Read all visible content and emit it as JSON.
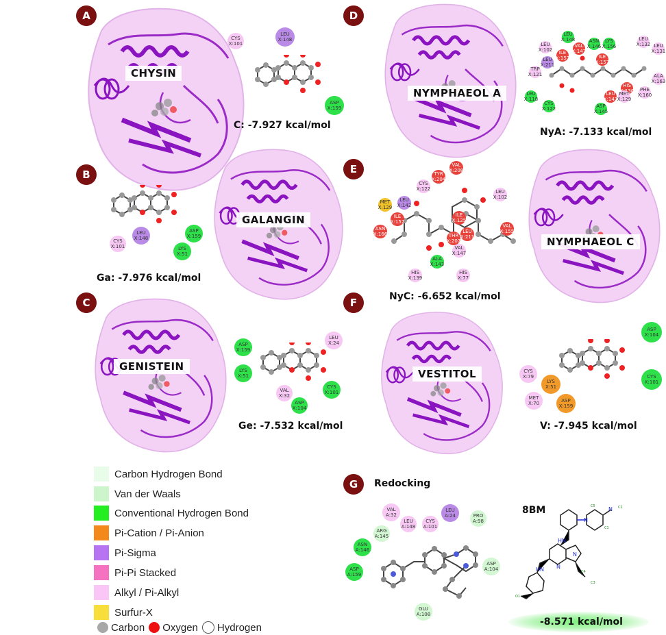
{
  "panels": {
    "A": {
      "badge": "A",
      "protein": "CHYSIN",
      "score": "C: -7.927 kcal/mol",
      "residues": [
        {
          "name": "CYS",
          "id": "X:101"
        },
        {
          "name": "LEU",
          "id": "X:148"
        },
        {
          "name": "ASP",
          "id": "X:159"
        }
      ]
    },
    "B": {
      "badge": "B",
      "protein": "GALANGIN",
      "score": "Ga: -7.976 kcal/mol",
      "residues": [
        {
          "name": "LEU",
          "id": "X:148"
        },
        {
          "name": "ASP",
          "id": "X:159"
        },
        {
          "name": "CYS",
          "id": "X:101"
        },
        {
          "name": "LYS",
          "id": "X:51"
        }
      ]
    },
    "C": {
      "badge": "C",
      "protein": "GENISTEIN",
      "score": "Ge: -7.532 kcal/mol",
      "residues": [
        {
          "name": "ASP",
          "id": "X:159"
        },
        {
          "name": "LEU",
          "id": "X:24"
        },
        {
          "name": "LYS",
          "id": "X:51"
        },
        {
          "name": "VAL",
          "id": "X:32"
        },
        {
          "name": "ASP",
          "id": "X:104"
        },
        {
          "name": "CYS",
          "id": "X:101"
        }
      ]
    },
    "D": {
      "badge": "D",
      "protein": "NYMPHAEOL A",
      "score": "NyA: -7.133 kcal/mol",
      "residues": [
        {
          "name": "LEU",
          "id": "X:148"
        },
        {
          "name": "ASN",
          "id": "X:146"
        },
        {
          "name": "LYS",
          "id": "X:156"
        },
        {
          "name": "LEU",
          "id": "X:132"
        },
        {
          "name": "LEU",
          "id": "X:131"
        },
        {
          "name": "LEU",
          "id": "X:102"
        },
        {
          "name": "ILE",
          "id": "X:157"
        },
        {
          "name": "VAL",
          "id": "X:147"
        },
        {
          "name": "ILE",
          "id": "X:157"
        },
        {
          "name": "LEU",
          "id": "X:211"
        },
        {
          "name": "TRP",
          "id": "X:121"
        },
        {
          "name": "ALA",
          "id": "X:163"
        },
        {
          "name": "HIS",
          "id": "X:130"
        },
        {
          "name": "PHE",
          "id": "X:160"
        },
        {
          "name": "LEU",
          "id": "X:118"
        },
        {
          "name": "LEU",
          "id": "X:143"
        },
        {
          "name": "MET",
          "id": "X:129"
        },
        {
          "name": "CYS",
          "id": "X:122"
        },
        {
          "name": "ASP",
          "id": "X:145"
        }
      ]
    },
    "E": {
      "badge": "E",
      "protein": "NYMPHAEOL C",
      "score": "NyC: -6.652 kcal/mol",
      "residues": [
        {
          "name": "VAL",
          "id": "X:208"
        },
        {
          "name": "TYR",
          "id": "X:204"
        },
        {
          "name": "CYS",
          "id": "X:122"
        },
        {
          "name": "LEU",
          "id": "X:102"
        },
        {
          "name": "MET",
          "id": "X:129"
        },
        {
          "name": "LEU",
          "id": "X:142"
        },
        {
          "name": "ILE",
          "id": "X:157"
        },
        {
          "name": "ILE",
          "id": "X:125"
        },
        {
          "name": "ASN",
          "id": "X:166"
        },
        {
          "name": "LEU",
          "id": "X:211"
        },
        {
          "name": "THR",
          "id": "X:207"
        },
        {
          "name": "VAL",
          "id": "X:155"
        },
        {
          "name": "VAL",
          "id": "X:147"
        },
        {
          "name": "ALA",
          "id": "X:143"
        },
        {
          "name": "HIS",
          "id": "X:139"
        },
        {
          "name": "HIS",
          "id": "X:77"
        }
      ]
    },
    "F": {
      "badge": "F",
      "protein": "VESTITOL",
      "score": "V: -7.945 kcal/mol",
      "residues": [
        {
          "name": "ASP",
          "id": "X:104"
        },
        {
          "name": "CYS",
          "id": "X:79"
        },
        {
          "name": "LYS",
          "id": "X:51"
        },
        {
          "name": "CYS",
          "id": "X:101"
        },
        {
          "name": "MET",
          "id": "X:70"
        },
        {
          "name": "ASP",
          "id": "X:159"
        }
      ]
    },
    "G": {
      "badge": "G",
      "title": "Redocking",
      "ligand": "8BM",
      "score": "-8.571 kcal/mol",
      "residues": [
        {
          "name": "VAL",
          "id": "A:32"
        },
        {
          "name": "LEU",
          "id": "A:24"
        },
        {
          "name": "LEU",
          "id": "A:148"
        },
        {
          "name": "CYS",
          "id": "A:101"
        },
        {
          "name": "PRO",
          "id": "A:98"
        },
        {
          "name": "ARG",
          "id": "A:145"
        },
        {
          "name": "ASN",
          "id": "A:146"
        },
        {
          "name": "ASP",
          "id": "A:104"
        },
        {
          "name": "ASP",
          "id": "A:159"
        },
        {
          "name": "GLU",
          "id": "A:108"
        }
      ]
    }
  },
  "legend": {
    "items": [
      {
        "label": "Carbon Hydrogen Bond",
        "color": "#e9fbe9"
      },
      {
        "label": "Van der Waals",
        "color": "#ccf5cc"
      },
      {
        "label": "Conventional Hydrogen Bond",
        "color": "#22ee22"
      },
      {
        "label": "Pi-Cation / Pi-Anion",
        "color": "#f3891a"
      },
      {
        "label": "Pi-Sigma",
        "color": "#b774f2"
      },
      {
        "label": "Pi-Pi Stacked",
        "color": "#f472c0"
      },
      {
        "label": "Alkyl / Pi-Alkyl",
        "color": "#f9c6f6"
      },
      {
        "label": "Surfur-X",
        "color": "#f7de3a"
      }
    ],
    "atoms": [
      {
        "label": "Carbon",
        "color": "#a8a8a8"
      },
      {
        "label": "Oxygen",
        "color": "#ee1111"
      },
      {
        "label": "Hydrogen",
        "color": "#ffffff"
      }
    ]
  }
}
